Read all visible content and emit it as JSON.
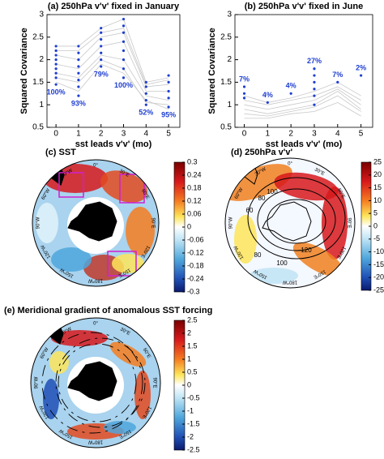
{
  "chart_data": [
    {
      "type": "line",
      "title": "(a) 250hPa v'v' fixed in January",
      "xlabel": "sst leads v'v' (mo)",
      "ylabel": "Squared Covariance",
      "x": [
        0,
        1,
        2,
        3,
        4,
        5
      ],
      "xlim": [
        -0.4,
        5.5
      ],
      "xticks": [
        0,
        1,
        2,
        3,
        4,
        5
      ],
      "ylim": [
        0.5,
        3
      ],
      "yticks": [
        0.5,
        1,
        1.5,
        2,
        2.5,
        3
      ],
      "line_color": "#c8c8c8",
      "lines": [
        [
          1.5,
          1.3,
          1.9,
          1.7,
          1.1,
          0.9
        ],
        [
          2.3,
          2.3,
          2.7,
          2.9,
          1.5,
          1.6
        ],
        [
          1.9,
          1.8,
          2.3,
          2.4,
          1.3,
          1.3
        ],
        [
          1.7,
          1.6,
          2.1,
          2.0,
          1.2,
          1.1
        ],
        [
          2.1,
          2.0,
          2.5,
          2.6,
          1.4,
          1.45
        ],
        [
          1.6,
          1.5,
          2.0,
          1.8,
          1.05,
          1.0
        ],
        [
          2.2,
          2.2,
          2.6,
          2.7,
          1.45,
          1.55
        ]
      ],
      "point_color": "#1f3fd0",
      "points": [
        [
          1.45,
          1.6,
          1.7,
          1.8,
          1.9,
          2.0,
          2.1,
          2.2,
          2.3
        ],
        [
          1.2,
          1.4,
          1.55,
          1.7,
          1.85,
          2.0,
          2.15,
          2.3
        ],
        [
          1.85,
          2.0,
          2.15,
          2.3,
          2.45,
          2.6,
          2.7
        ],
        [
          1.6,
          1.8,
          2.0,
          2.2,
          2.4,
          2.6,
          2.75,
          2.9
        ],
        [
          1.0,
          1.1,
          1.25,
          1.4,
          1.5
        ],
        [
          0.95,
          1.15,
          1.3,
          1.5,
          1.65
        ]
      ],
      "percent": {
        "values": [
          100,
          93,
          79,
          100,
          52,
          95
        ],
        "value_labels": [
          "100%",
          "93%",
          "79%",
          "100%",
          "52%",
          "95%"
        ]
      }
    },
    {
      "type": "line",
      "title": "(b) 250hPa v'v' fixed in June",
      "xlabel": "sst leads v'v' (mo)",
      "ylabel": "Squared Covariance",
      "x": [
        0,
        1,
        2,
        3,
        4,
        5
      ],
      "xlim": [
        -0.4,
        5.5
      ],
      "xticks": [
        0,
        1,
        2,
        3,
        4,
        5
      ],
      "ylim": [
        0.5,
        3
      ],
      "yticks": [
        0.5,
        1,
        1.5,
        2,
        2.5,
        3
      ],
      "line_color": "#c8c8c8",
      "lines": [
        [
          0.9,
          0.8,
          0.9,
          1.0,
          1.3,
          0.9
        ],
        [
          1.1,
          1.0,
          1.1,
          1.2,
          1.4,
          1.1
        ],
        [
          0.8,
          0.75,
          0.85,
          0.95,
          1.2,
          0.85
        ],
        [
          1.2,
          1.05,
          1.15,
          1.3,
          1.5,
          1.2
        ],
        [
          0.7,
          0.7,
          0.8,
          0.85,
          1.05,
          0.75
        ],
        [
          1.0,
          0.9,
          1.0,
          1.1,
          1.35,
          1.0
        ]
      ],
      "point_color": "#1f3fd0",
      "points": [
        [
          1.15,
          1.25,
          1.4
        ],
        [
          1.05
        ],
        [
          1.25
        ],
        [
          1.0,
          1.2,
          1.35,
          1.5,
          1.65,
          1.8
        ],
        [
          1.5
        ],
        [
          1.65
        ]
      ],
      "percent": {
        "values": [
          7,
          4,
          4,
          27,
          7,
          2
        ],
        "value_labels": [
          "7%",
          "4%",
          "4%",
          "27%",
          "7%",
          "2%"
        ]
      }
    },
    {
      "type": "polar_map",
      "title": "(c) SST",
      "clim": [
        -0.3,
        0.3
      ],
      "cticks": [
        0.3,
        0.24,
        0.18,
        0.12,
        0.06,
        0,
        -0.06,
        -0.12,
        -0.18,
        -0.24,
        -0.3
      ],
      "lon_labels": [
        "0°",
        "30°E",
        "60°E",
        "90°E",
        "120°E",
        "150°E",
        "180°W",
        "150°W",
        "120°W",
        "90°W",
        "60°W",
        "30°W"
      ]
    },
    {
      "type": "polar_map",
      "title": "(d) 250hPa v'v'",
      "clim": [
        -25,
        25
      ],
      "cticks": [
        25,
        20,
        15,
        10,
        5,
        0,
        -5,
        -10,
        -15,
        -20,
        -25
      ],
      "lon_labels": [
        "0°",
        "30°E",
        "60°E",
        "90°E",
        "120°E",
        "150°E",
        "180°W",
        "150°W",
        "120°W",
        "90°W",
        "60°W",
        "30°W"
      ],
      "contour_labels": [
        "100",
        "80",
        "60",
        "120",
        "80",
        "100"
      ]
    },
    {
      "type": "polar_map",
      "title": "(e) Meridional gradient of anomalous SST forcing",
      "clim": [
        -2.5,
        2.5
      ],
      "cticks": [
        2.5,
        2,
        1.5,
        1,
        0.5,
        0,
        -0.5,
        -1,
        -1.5,
        -2,
        -2.5
      ],
      "lon_labels": [
        "0°",
        "30°E",
        "60°E",
        "90°E",
        "120°E",
        "150°E",
        "180°W",
        "150°W",
        "120°W",
        "90°W",
        "60°W",
        "30°W"
      ]
    }
  ]
}
